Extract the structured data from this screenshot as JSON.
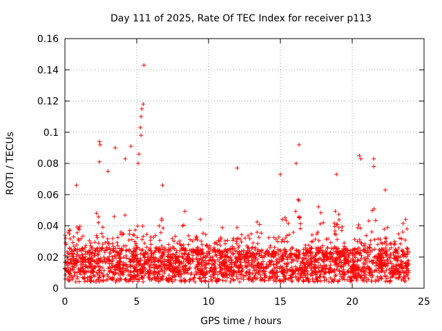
{
  "chart_data": {
    "type": "scatter",
    "title": "Day 111 of 2025, Rate Of TEC Index for receiver p113",
    "xlabel": "GPS time / hours",
    "ylabel": "ROTI / TECUs",
    "xlim": [
      0,
      25
    ],
    "ylim": [
      0,
      0.16
    ],
    "xticks": [
      0,
      5,
      10,
      15,
      20,
      25
    ],
    "yticks": [
      0,
      0.02,
      0.04,
      0.06,
      0.08,
      0.1,
      0.12,
      0.14,
      0.16
    ],
    "xtick_labels": [
      "0",
      "5",
      "10",
      "15",
      "20",
      "25"
    ],
    "ytick_labels": [
      "0",
      "0.02",
      "0.04",
      "0.06",
      "0.08",
      "0.1",
      "0.12",
      "0.14",
      "0.16"
    ],
    "grid": true,
    "marker": "plus",
    "color": "#ff0000",
    "series": [
      {
        "name": "ROTI",
        "notable_points": [
          {
            "x": 5.5,
            "y": 0.143
          },
          {
            "x": 5.45,
            "y": 0.118
          },
          {
            "x": 5.35,
            "y": 0.115
          },
          {
            "x": 5.3,
            "y": 0.11
          },
          {
            "x": 5.25,
            "y": 0.103
          },
          {
            "x": 5.3,
            "y": 0.098
          },
          {
            "x": 5.15,
            "y": 0.086
          },
          {
            "x": 5.1,
            "y": 0.08
          },
          {
            "x": 2.4,
            "y": 0.094
          },
          {
            "x": 2.45,
            "y": 0.092
          },
          {
            "x": 4.6,
            "y": 0.091
          },
          {
            "x": 3.5,
            "y": 0.09
          },
          {
            "x": 16.3,
            "y": 0.092
          },
          {
            "x": 20.5,
            "y": 0.085
          },
          {
            "x": 20.6,
            "y": 0.083
          },
          {
            "x": 21.5,
            "y": 0.083
          },
          {
            "x": 21.5,
            "y": 0.078
          },
          {
            "x": 12.0,
            "y": 0.077
          },
          {
            "x": 15.0,
            "y": 0.073
          },
          {
            "x": 16.1,
            "y": 0.08
          },
          {
            "x": 4.2,
            "y": 0.083
          },
          {
            "x": 3.0,
            "y": 0.075
          },
          {
            "x": 2.4,
            "y": 0.081
          },
          {
            "x": 18.9,
            "y": 0.073
          },
          {
            "x": 6.8,
            "y": 0.066
          },
          {
            "x": 0.8,
            "y": 0.066
          },
          {
            "x": 22.3,
            "y": 0.063
          }
        ],
        "bulk_description_values": {
          "baseline_min": 0.003,
          "baseline_typical": 0.015,
          "upper_envelope_typical": 0.05,
          "hour_range": [
            0,
            24
          ]
        }
      }
    ]
  }
}
